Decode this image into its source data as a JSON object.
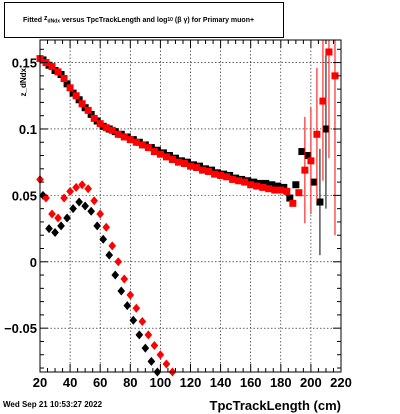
{
  "title": {
    "prefix": "Fitted",
    "var": "z",
    "var_sub": "dNdx",
    "middle": "versus TpcTrackLength and log",
    "log_sub": "10",
    "suffix": "(β γ) for Primary muon+"
  },
  "footer": {
    "date": "Wed Sep 21 10:53:27 2022"
  },
  "colors": {
    "series_a": "#000000",
    "series_b": "#ff0000",
    "grid": "#000000"
  },
  "chart_data": {
    "type": "scatter",
    "title": "Fitted z_dNdx versus TpcTrackLength and log_10 (β γ) for Primary muon+",
    "xlabel": "TpcTrackLength (cm)",
    "ylabel": "z_dNdx",
    "xlim": [
      20,
      220
    ],
    "ylim": [
      -0.083,
      0.167
    ],
    "x_ticks": [
      20,
      40,
      60,
      80,
      100,
      120,
      140,
      160,
      180,
      200,
      220
    ],
    "x_tick_labels": [
      "20",
      "40",
      "60",
      "80",
      "100",
      "120",
      "140",
      "160",
      "180",
      "200",
      "220"
    ],
    "y_ticks": [
      -0.05,
      0,
      0.05,
      0.1,
      0.15
    ],
    "y_tick_labels": [
      "−0.05",
      "0",
      "0.05",
      "0.1",
      "0.15"
    ],
    "grid": true,
    "series": [
      {
        "marker": "square",
        "color": "#000000",
        "points": [
          [
            22,
            0.152
          ],
          [
            26,
            0.148
          ],
          [
            30,
            0.144
          ],
          [
            34,
            0.141
          ],
          [
            38,
            0.134
          ],
          [
            42,
            0.127
          ],
          [
            46,
            0.122
          ],
          [
            50,
            0.116
          ],
          [
            54,
            0.111
          ],
          [
            58,
            0.106
          ],
          [
            62,
            0.102
          ],
          [
            66,
            0.1
          ],
          [
            70,
            0.098
          ],
          [
            74,
            0.096
          ],
          [
            78,
            0.094
          ],
          [
            82,
            0.092
          ],
          [
            86,
            0.09
          ],
          [
            90,
            0.088
          ],
          [
            94,
            0.086
          ],
          [
            98,
            0.084
          ],
          [
            102,
            0.082
          ],
          [
            106,
            0.08
          ],
          [
            110,
            0.078
          ],
          [
            114,
            0.076
          ],
          [
            118,
            0.075
          ],
          [
            122,
            0.073
          ],
          [
            126,
            0.072
          ],
          [
            130,
            0.07
          ],
          [
            134,
            0.069
          ],
          [
            138,
            0.067
          ],
          [
            142,
            0.066
          ],
          [
            146,
            0.065
          ],
          [
            150,
            0.063
          ],
          [
            154,
            0.062
          ],
          [
            158,
            0.061
          ],
          [
            162,
            0.06
          ],
          [
            166,
            0.059
          ],
          [
            170,
            0.059
          ],
          [
            174,
            0.058
          ],
          [
            178,
            0.057
          ],
          [
            182,
            0.056
          ],
          [
            186,
            0.048
          ],
          [
            190,
            0.058
          ],
          [
            194,
            0.083
          ],
          [
            198,
            0.08
          ],
          [
            202,
            0.06
          ],
          [
            206,
            0.045
          ],
          [
            210,
            0.1
          ]
        ],
        "errors": [
          [
            206,
            0.04
          ],
          [
            210,
            0.06
          ]
        ]
      },
      {
        "marker": "square",
        "color": "#ff0000",
        "points": [
          [
            20,
            0.153
          ],
          [
            24,
            0.15
          ],
          [
            28,
            0.147
          ],
          [
            32,
            0.143
          ],
          [
            36,
            0.138
          ],
          [
            40,
            0.131
          ],
          [
            44,
            0.125
          ],
          [
            48,
            0.119
          ],
          [
            52,
            0.114
          ],
          [
            56,
            0.108
          ],
          [
            60,
            0.104
          ],
          [
            64,
            0.101
          ],
          [
            68,
            0.099
          ],
          [
            72,
            0.096
          ],
          [
            76,
            0.094
          ],
          [
            80,
            0.092
          ],
          [
            84,
            0.09
          ],
          [
            88,
            0.088
          ],
          [
            92,
            0.086
          ],
          [
            96,
            0.083
          ],
          [
            100,
            0.081
          ],
          [
            104,
            0.079
          ],
          [
            108,
            0.077
          ],
          [
            112,
            0.075
          ],
          [
            116,
            0.074
          ],
          [
            120,
            0.072
          ],
          [
            124,
            0.071
          ],
          [
            128,
            0.069
          ],
          [
            132,
            0.068
          ],
          [
            136,
            0.066
          ],
          [
            140,
            0.065
          ],
          [
            144,
            0.064
          ],
          [
            148,
            0.062
          ],
          [
            152,
            0.061
          ],
          [
            156,
            0.06
          ],
          [
            160,
            0.058
          ],
          [
            164,
            0.057
          ],
          [
            168,
            0.056
          ],
          [
            172,
            0.055
          ],
          [
            176,
            0.054
          ],
          [
            180,
            0.054
          ],
          [
            184,
            0.053
          ],
          [
            188,
            0.044
          ],
          [
            192,
            0.052
          ],
          [
            196,
            0.069
          ],
          [
            200,
            0.076
          ],
          [
            204,
            0.096
          ],
          [
            208,
            0.121
          ],
          [
            212,
            0.158
          ],
          [
            216,
            0.14
          ]
        ],
        "errors": [
          [
            196,
            0.04
          ],
          [
            200,
            0.04
          ],
          [
            204,
            0.05
          ],
          [
            208,
            0.06
          ],
          [
            212,
            0.08
          ],
          [
            216,
            0.12
          ]
        ]
      },
      {
        "marker": "diamond",
        "color": "#000000",
        "points": [
          [
            22,
            0.05
          ],
          [
            26,
            0.025
          ],
          [
            30,
            0.022
          ],
          [
            34,
            0.027
          ],
          [
            38,
            0.033
          ],
          [
            42,
            0.04
          ],
          [
            46,
            0.045
          ],
          [
            50,
            0.042
          ],
          [
            54,
            0.038
          ],
          [
            58,
            0.027
          ],
          [
            62,
            0.017
          ],
          [
            66,
            0.005
          ],
          [
            70,
            -0.01
          ],
          [
            74,
            -0.022
          ],
          [
            78,
            -0.033
          ],
          [
            82,
            -0.044
          ],
          [
            86,
            -0.055
          ],
          [
            90,
            -0.065
          ],
          [
            94,
            -0.075
          ],
          [
            98,
            -0.083
          ]
        ]
      },
      {
        "marker": "diamond",
        "color": "#ff0000",
        "points": [
          [
            20,
            0.062
          ],
          [
            24,
            0.048
          ],
          [
            28,
            0.036
          ],
          [
            32,
            0.033
          ],
          [
            36,
            0.048
          ],
          [
            40,
            0.053
          ],
          [
            44,
            0.056
          ],
          [
            48,
            0.058
          ],
          [
            52,
            0.055
          ],
          [
            56,
            0.046
          ],
          [
            60,
            0.036
          ],
          [
            64,
            0.026
          ],
          [
            68,
            0.012
          ],
          [
            72,
            0.0
          ],
          [
            76,
            -0.013
          ],
          [
            80,
            -0.025
          ],
          [
            84,
            -0.035
          ],
          [
            88,
            -0.045
          ],
          [
            92,
            -0.055
          ],
          [
            96,
            -0.063
          ],
          [
            100,
            -0.07
          ],
          [
            104,
            -0.077
          ],
          [
            108,
            -0.083
          ]
        ]
      }
    ]
  }
}
